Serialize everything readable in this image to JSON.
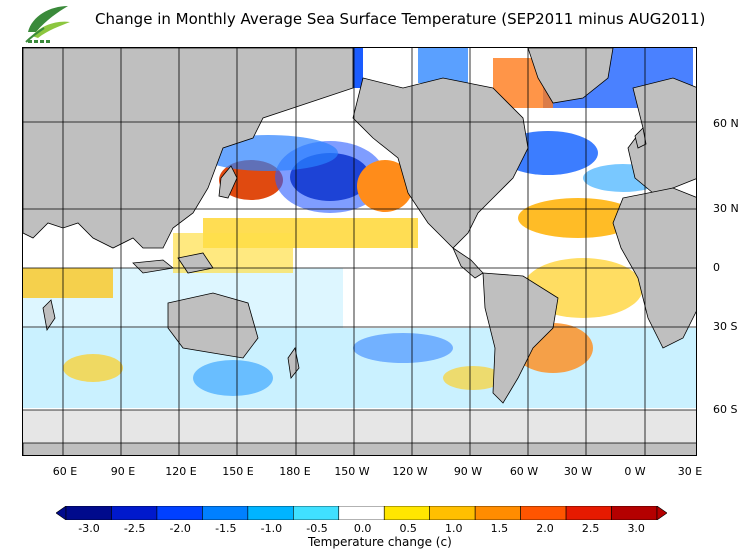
{
  "title": "Change in Monthly Average Sea Surface Temperature (SEP2011 minus AUG2011)",
  "logo": {
    "icon": "leaf-logo-icon",
    "colors": [
      "#3a8a3a",
      "#8cc63f"
    ]
  },
  "map": {
    "projection": "cylindrical, Pacific-centred",
    "lon_labels": [
      "60 E",
      "90 E",
      "120 E",
      "150 E",
      "180 E",
      "150 W",
      "120 W",
      "90 W",
      "60 W",
      "30 W",
      "0 W",
      "30 E"
    ],
    "lat_labels": [
      "60 N",
      "30 N",
      "0",
      "30 S",
      "60 S"
    ],
    "land_color": "#bfbfbf",
    "ice_color": "#e6e6e6"
  },
  "colorbar": {
    "labels": [
      "-3.0",
      "-2.5",
      "-2.0",
      "-1.5",
      "-1.0",
      "-0.5",
      "0.0",
      "0.5",
      "1.0",
      "1.5",
      "2.0",
      "2.5",
      "3.0"
    ],
    "colors": [
      "#000a8c",
      "#0019cc",
      "#0040ff",
      "#0080ff",
      "#00b4ff",
      "#40e0ff",
      "#ffffff",
      "#ffe600",
      "#ffbf00",
      "#ff8c00",
      "#ff5500",
      "#e61a00",
      "#b40000"
    ],
    "title": "Temperature change  (c)"
  }
}
